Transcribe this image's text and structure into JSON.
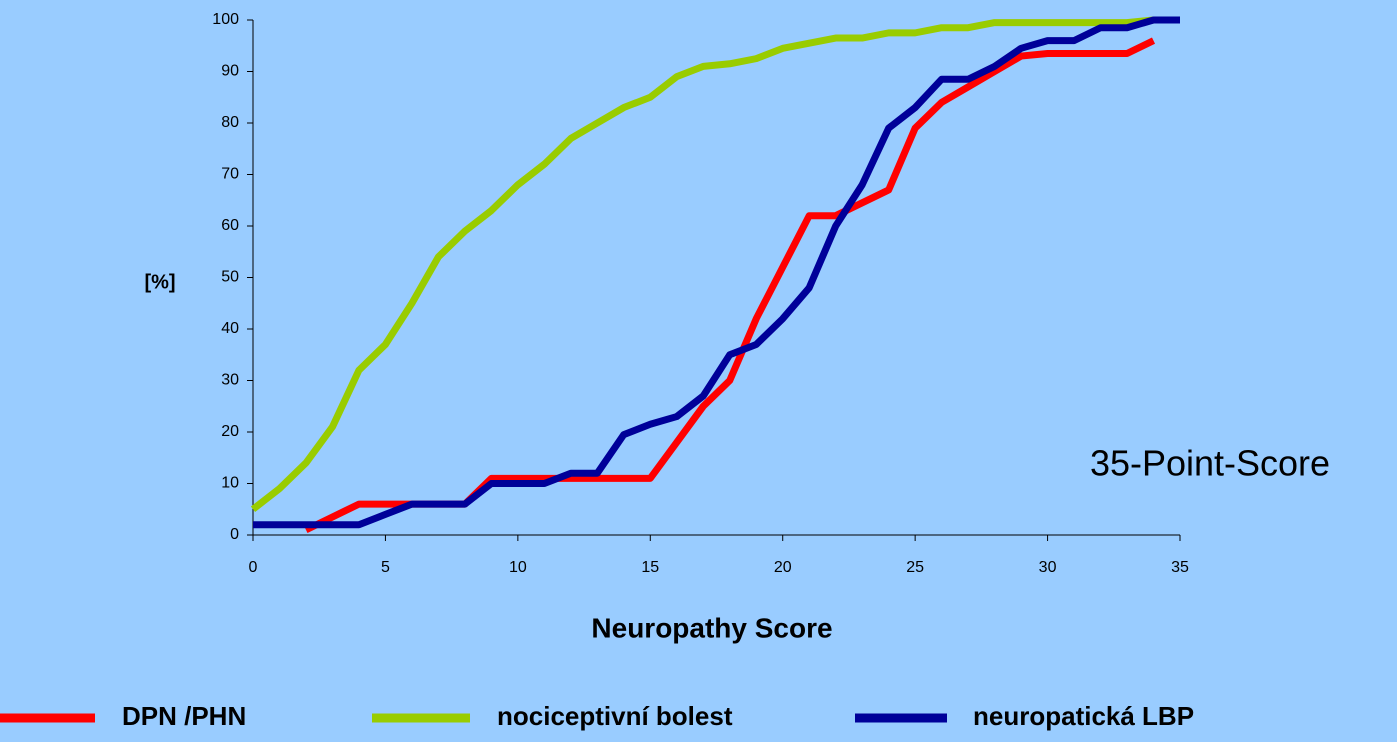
{
  "chart_data": {
    "type": "line",
    "x": [
      0,
      1,
      2,
      3,
      4,
      5,
      6,
      7,
      8,
      9,
      10,
      11,
      12,
      13,
      14,
      15,
      16,
      17,
      18,
      19,
      20,
      21,
      22,
      23,
      24,
      25,
      26,
      27,
      28,
      29,
      30,
      31,
      32,
      33,
      34,
      35
    ],
    "series": [
      {
        "name": "DPN /PHN",
        "color": "#ff0000",
        "values": [
          null,
          null,
          1,
          3.5,
          6,
          6,
          6,
          6,
          6,
          11,
          11,
          11,
          11,
          11,
          11,
          11,
          18,
          25,
          30,
          42,
          52,
          62,
          62,
          64.5,
          67,
          79,
          84,
          87,
          90,
          93,
          93.5,
          93.5,
          93.5,
          93.5,
          96,
          null
        ]
      },
      {
        "name": "nociceptivní bolest",
        "color": "#99cc00",
        "values": [
          5,
          9,
          14,
          21,
          32,
          37,
          45,
          54,
          59,
          63,
          68,
          72,
          77,
          80,
          83,
          85,
          89,
          91,
          91.5,
          92.5,
          94.5,
          95.5,
          96.5,
          96.5,
          97.5,
          97.5,
          98.5,
          98.5,
          99.5,
          99.5,
          99.5,
          99.5,
          99.5,
          99.5,
          100,
          100
        ]
      },
      {
        "name": "neuropatická LBP",
        "color": "#000099",
        "values": [
          2,
          2,
          2,
          2,
          2,
          4,
          6,
          6,
          6,
          10,
          10,
          10,
          12,
          12,
          19.5,
          21.5,
          23,
          27,
          35,
          37,
          42,
          48,
          60,
          68,
          79,
          83,
          88.5,
          88.5,
          91,
          94.5,
          96,
          96,
          98.5,
          98.5,
          100,
          100
        ]
      }
    ],
    "xlim": [
      0,
      35
    ],
    "xticks": [
      0,
      5,
      10,
      15,
      20,
      25,
      30,
      35
    ],
    "ylim": [
      0,
      100
    ],
    "yticks": [
      0,
      10,
      20,
      30,
      40,
      50,
      60,
      70,
      80,
      90,
      100
    ],
    "xlabel": "Neuropathy Score",
    "ylabel": "[%]",
    "annotation": "35-Point-Score",
    "legend_position": "bottom"
  }
}
